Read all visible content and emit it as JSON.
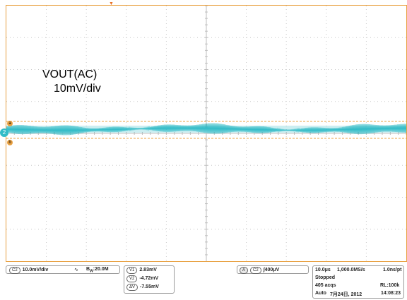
{
  "annotation": {
    "signal": "VOUT(AC)",
    "scale": "10mV/div"
  },
  "markers": {
    "trigger_top": "▼",
    "ch_ref": "2",
    "cursor_a": "a",
    "cursor_b": "b"
  },
  "channel_box": {
    "chip": "C2",
    "volts_div": "10.0mV/div",
    "coupling_icon": "∿",
    "bw": "B",
    "bw_sub": "W",
    "bw_value": ":20.0M"
  },
  "cursor_box": {
    "rows": [
      {
        "chip": "V1",
        "value": "2.83mV"
      },
      {
        "chip": "V2",
        "value": "-4.72mV"
      },
      {
        "chip": "ΔV",
        "value": "-7.55mV"
      }
    ]
  },
  "trigger_box": {
    "mode": "A",
    "chip": "C2",
    "slope": "∫",
    "level": "400μV"
  },
  "timebase_box": {
    "time_div": "10.0μs",
    "sample_rate": "1,000.0MS/s",
    "pt": "1.0ns/pt",
    "state": "Stopped",
    "acqs": "405 acqs",
    "rl": "RL:100k",
    "trig_mode": "Auto",
    "date": "7月24日, 2012",
    "time": "14:08:23"
  },
  "colors": {
    "trace": "#33bcc7",
    "grid": "#c8c8c8",
    "frame": "#e8a040",
    "cursor": "#e8a040"
  }
}
